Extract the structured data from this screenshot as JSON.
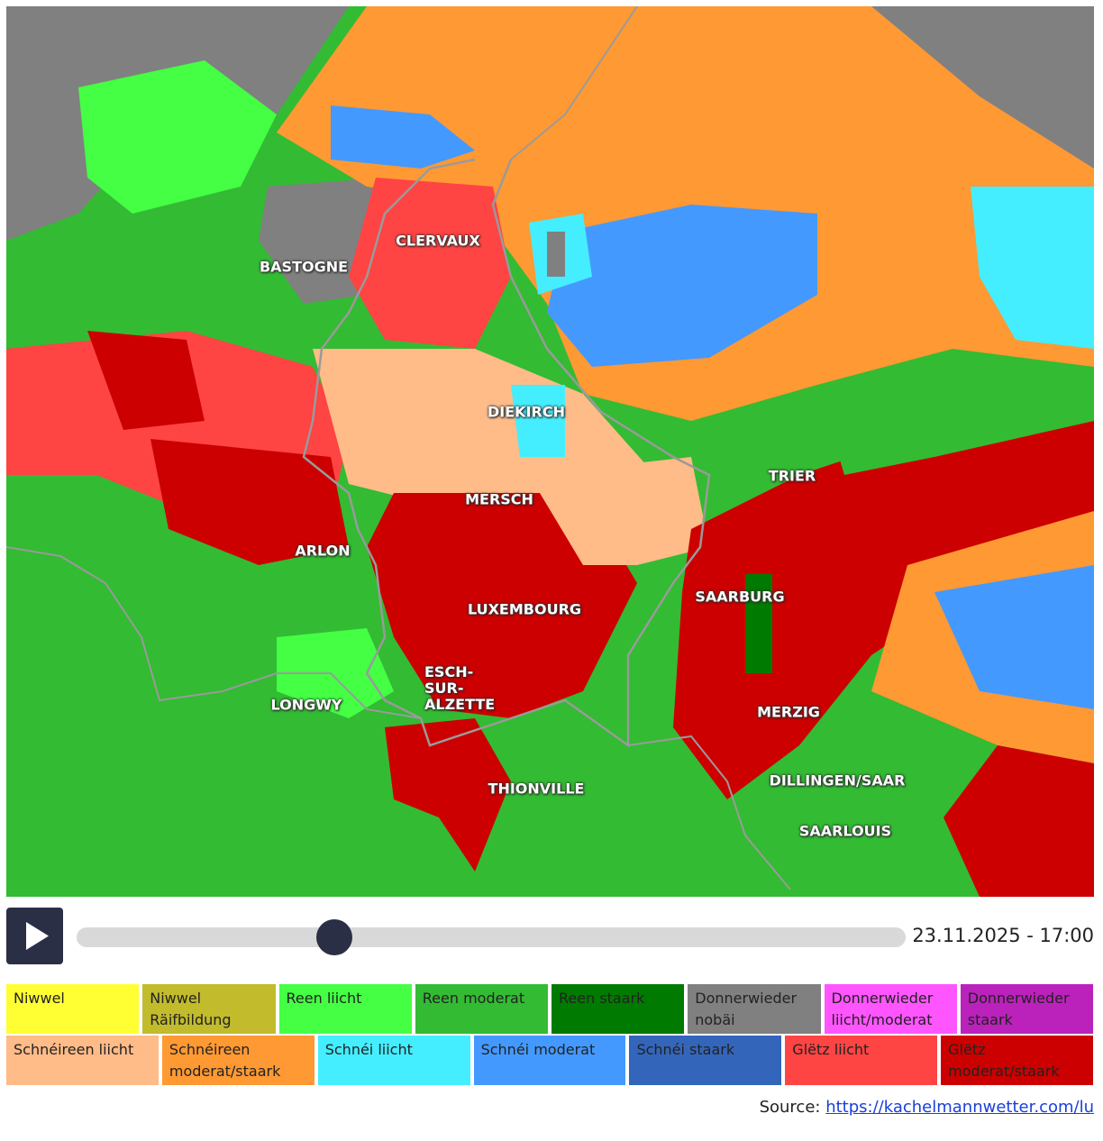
{
  "map": {
    "places": [
      {
        "label": "BASTOGNE"
      },
      {
        "label": "CLERVAUX"
      },
      {
        "label": "DIEKIRCH"
      },
      {
        "label": "TRIER"
      },
      {
        "label": "MERSCH"
      },
      {
        "label": "ARLON"
      },
      {
        "label": "SAARBURG"
      },
      {
        "label": "LUXEMBOURG"
      },
      {
        "label": "ESCH-SUR-ALZETTE"
      },
      {
        "label": "LONGWY"
      },
      {
        "label": "MERZIG"
      },
      {
        "label": "THIONVILLE"
      },
      {
        "label": "DILLINGEN/SAAR"
      },
      {
        "label": "SAARLOUIS"
      }
    ]
  },
  "player": {
    "timestamp": "23.11.2025 - 17:00"
  },
  "legend": {
    "rows": [
      [
        {
          "label": "Niwwel",
          "color": "#ffff33"
        },
        {
          "label": "Niwwel Räifbildung",
          "color": "#c2bb2c"
        },
        {
          "label": "Reen liicht",
          "color": "#44ff44"
        },
        {
          "label": "Reen moderat",
          "color": "#33bb33"
        },
        {
          "label": "Reen staark",
          "color": "#007a00"
        },
        {
          "label": "Donnerwieder nobäi",
          "color": "#808080"
        },
        {
          "label": "Donnerwieder liicht/moderat",
          "color": "#ff55ff"
        },
        {
          "label": "Donnerwieder staark",
          "color": "#bb22bb"
        }
      ],
      [
        {
          "label": "Schnéireen liicht",
          "color": "#ffbb88"
        },
        {
          "label": "Schnéireen moderat/staark",
          "color": "#ff9933"
        },
        {
          "label": "Schnéi liicht",
          "color": "#44eeff"
        },
        {
          "label": "Schnéi moderat",
          "color": "#4499ff"
        },
        {
          "label": "Schnéi staark",
          "color": "#3366bb"
        },
        {
          "label": "Glëtz liicht",
          "color": "#ff4444"
        },
        {
          "label": "Glëtz moderat/staark",
          "color": "#cc0000"
        }
      ]
    ]
  },
  "source": {
    "label": "Source:",
    "link": "https://kachelmannwetter.com/lu"
  }
}
